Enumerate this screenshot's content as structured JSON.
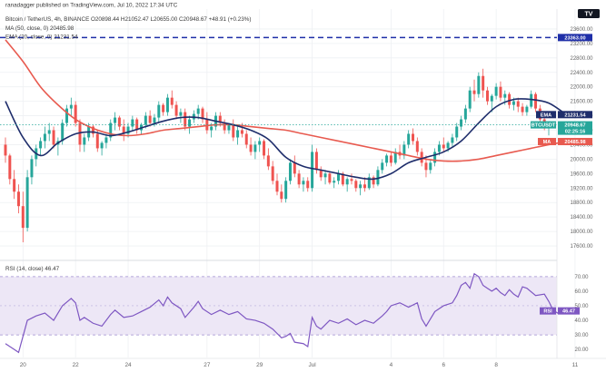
{
  "header": {
    "publisher": "ranadagger published on TradingView.com, Jul 10, 2022 17:34 UTC",
    "ohlc_line": "Bitcoin / TetherUS, 4h, BINANCE  O20898.44  H21052.47  L20655.00  C20948.67  +48.91 (+0.23%)",
    "ma_line": "MA (50, close, 0)  20485.98",
    "ema_line": "EMA (20, close, 0)  21231.54"
  },
  "rsi_header": "RSI (14, close)  46.47",
  "labels": {
    "ema_tag": "EMA",
    "ema_value": "21231.54",
    "price_tag": "BTCUSDT",
    "price_value": "20948.67",
    "countdown": "02:25:16",
    "ma_tag": "MA",
    "ma_value": "20485.98",
    "hline_value": "23363.00",
    "rsi_tag": "RSI",
    "rsi_value": "46.47"
  },
  "logo_text": "TV",
  "colors": {
    "up": "#26a69a",
    "down": "#ef5350",
    "ema": "#1e2d6b",
    "ma": "#e85a4f",
    "hline": "#1f2fa8",
    "rsi": "#7e57c2",
    "rsi_band": "#ede7f6",
    "price_tag": "#26a69a",
    "grid": "#eef0f3"
  },
  "chart_data": {
    "type": "candlestick",
    "symbol": "Bitcoin / TetherUS",
    "interval": "4h",
    "exchange": "BINANCE",
    "last": {
      "open": 20898.44,
      "high": 21052.47,
      "low": 20655.0,
      "close": 20948.67,
      "change": 48.91,
      "change_pct": 0.23
    },
    "ylim": [
      17300,
      24100
    ],
    "y_ticks": [
      23600,
      23200,
      22800,
      22400,
      22000,
      21600,
      21200,
      20800,
      20400,
      20000,
      19600,
      19200,
      18800,
      18400,
      18000,
      17600
    ],
    "x_ticks": [
      {
        "label": "20",
        "i": 4
      },
      {
        "label": "22",
        "i": 16
      },
      {
        "label": "24",
        "i": 28
      },
      {
        "label": "27",
        "i": 46
      },
      {
        "label": "29",
        "i": 58
      },
      {
        "label": "Jul",
        "i": 70
      },
      {
        "label": "4",
        "i": 88
      },
      {
        "label": "6",
        "i": 100
      },
      {
        "label": "8",
        "i": 112
      },
      {
        "label": "11",
        "i": 130
      }
    ],
    "horizontal_line": 23363,
    "candles": [
      [
        20400,
        20600,
        19900,
        20100
      ],
      [
        20100,
        20150,
        19300,
        19450
      ],
      [
        19450,
        19700,
        18900,
        19100
      ],
      [
        19100,
        19300,
        18500,
        18700
      ],
      [
        18700,
        19100,
        17700,
        18100
      ],
      [
        18100,
        19700,
        18000,
        19500
      ],
      [
        19500,
        20100,
        19300,
        20000
      ],
      [
        20000,
        20400,
        19800,
        20300
      ],
      [
        20300,
        20600,
        20100,
        20500
      ],
      [
        20500,
        20900,
        20300,
        20700
      ],
      [
        20700,
        21000,
        20500,
        20800
      ],
      [
        20800,
        20900,
        20300,
        20400
      ],
      [
        20400,
        20600,
        20100,
        20500
      ],
      [
        20500,
        21100,
        20400,
        21000
      ],
      [
        21000,
        21500,
        20900,
        21400
      ],
      [
        21400,
        21700,
        21200,
        21500
      ],
      [
        21500,
        21600,
        20900,
        21000
      ],
      [
        21000,
        21100,
        20200,
        20400
      ],
      [
        20400,
        20700,
        20200,
        20600
      ],
      [
        20600,
        21000,
        20500,
        20900
      ],
      [
        20900,
        20950,
        20600,
        20700
      ],
      [
        20700,
        20800,
        20200,
        20300
      ],
      [
        20300,
        20500,
        20100,
        20450
      ],
      [
        20450,
        20700,
        20300,
        20600
      ],
      [
        20600,
        21100,
        20500,
        21000
      ],
      [
        21000,
        21300,
        20800,
        21150
      ],
      [
        21150,
        21200,
        20800,
        20900
      ],
      [
        20900,
        21100,
        20500,
        20700
      ],
      [
        20700,
        21000,
        20600,
        20900
      ],
      [
        20900,
        21200,
        20800,
        21100
      ],
      [
        21100,
        21150,
        20700,
        20800
      ],
      [
        20800,
        21000,
        20700,
        20950
      ],
      [
        20950,
        21300,
        20850,
        21200
      ],
      [
        21200,
        21350,
        20900,
        21000
      ],
      [
        21000,
        21250,
        20900,
        21150
      ],
      [
        21150,
        21600,
        21000,
        21500
      ],
      [
        21500,
        21550,
        21200,
        21300
      ],
      [
        21300,
        21800,
        21200,
        21700
      ],
      [
        21700,
        21900,
        21400,
        21500
      ],
      [
        21500,
        21600,
        21100,
        21200
      ],
      [
        21200,
        21400,
        21000,
        21300
      ],
      [
        21300,
        21400,
        20800,
        20900
      ],
      [
        20900,
        21200,
        20700,
        21100
      ],
      [
        21100,
        21350,
        21000,
        21250
      ],
      [
        21250,
        21500,
        21100,
        21400
      ],
      [
        21400,
        21450,
        21000,
        21100
      ],
      [
        21100,
        21300,
        20700,
        20800
      ],
      [
        20800,
        21000,
        20600,
        20900
      ],
      [
        20900,
        21300,
        20800,
        21200
      ],
      [
        21200,
        21300,
        20900,
        21000
      ],
      [
        21000,
        21100,
        20700,
        20800
      ],
      [
        20800,
        21000,
        20700,
        20950
      ],
      [
        20950,
        21100,
        20500,
        20600
      ],
      [
        20600,
        20900,
        20400,
        20800
      ],
      [
        20800,
        21000,
        20600,
        20700
      ],
      [
        20700,
        20800,
        20300,
        20400
      ],
      [
        20400,
        20600,
        20100,
        20200
      ],
      [
        20200,
        20500,
        20000,
        20400
      ],
      [
        20400,
        20600,
        20200,
        20500
      ],
      [
        20500,
        20550,
        20000,
        20100
      ],
      [
        20100,
        20300,
        19700,
        19800
      ],
      [
        19800,
        19950,
        19300,
        19400
      ],
      [
        19400,
        19600,
        19000,
        19100
      ],
      [
        19100,
        19300,
        18800,
        18900
      ],
      [
        18900,
        19500,
        18800,
        19400
      ],
      [
        19400,
        20000,
        19300,
        19900
      ],
      [
        19900,
        20100,
        19500,
        19600
      ],
      [
        19600,
        19700,
        19200,
        19300
      ],
      [
        19300,
        19500,
        19100,
        19400
      ],
      [
        19400,
        19500,
        19100,
        19200
      ],
      [
        19200,
        20400,
        19100,
        20200
      ],
      [
        20200,
        20300,
        19600,
        19700
      ],
      [
        19700,
        19800,
        19400,
        19500
      ],
      [
        19500,
        19700,
        19300,
        19600
      ],
      [
        19600,
        19650,
        19300,
        19350
      ],
      [
        19350,
        19500,
        19200,
        19400
      ],
      [
        19400,
        19700,
        19300,
        19600
      ],
      [
        19600,
        19650,
        19250,
        19300
      ],
      [
        19300,
        19500,
        19100,
        19450
      ],
      [
        19450,
        19600,
        19300,
        19400
      ],
      [
        19400,
        19450,
        19100,
        19200
      ],
      [
        19200,
        19400,
        19000,
        19300
      ],
      [
        19300,
        19500,
        19100,
        19200
      ],
      [
        19200,
        19600,
        19150,
        19500
      ],
      [
        19500,
        19550,
        19200,
        19300
      ],
      [
        19300,
        19800,
        19250,
        19700
      ],
      [
        19700,
        20000,
        19600,
        19900
      ],
      [
        19900,
        20150,
        19800,
        20100
      ],
      [
        20100,
        20200,
        19800,
        19900
      ],
      [
        19900,
        20300,
        19850,
        20200
      ],
      [
        20200,
        20400,
        20000,
        20100
      ],
      [
        20100,
        20500,
        20000,
        20400
      ],
      [
        20400,
        20800,
        20300,
        20700
      ],
      [
        20700,
        20850,
        20400,
        20500
      ],
      [
        20500,
        20600,
        20100,
        20200
      ],
      [
        20200,
        20300,
        19800,
        19900
      ],
      [
        19900,
        20100,
        19500,
        19700
      ],
      [
        19700,
        20000,
        19600,
        19900
      ],
      [
        19900,
        20300,
        19800,
        20200
      ],
      [
        20200,
        20500,
        20100,
        20400
      ],
      [
        20400,
        20600,
        20200,
        20300
      ],
      [
        20300,
        20500,
        20200,
        20450
      ],
      [
        20450,
        20700,
        20350,
        20600
      ],
      [
        20600,
        21000,
        20500,
        20900
      ],
      [
        20900,
        21200,
        20800,
        21100
      ],
      [
        21100,
        21500,
        21000,
        21400
      ],
      [
        21400,
        22000,
        21300,
        21900
      ],
      [
        21900,
        22200,
        21600,
        21800
      ],
      [
        21800,
        22400,
        21700,
        22300
      ],
      [
        22300,
        22500,
        21700,
        21900
      ],
      [
        21900,
        22000,
        21500,
        21600
      ],
      [
        21600,
        21800,
        21300,
        21750
      ],
      [
        21750,
        22100,
        21650,
        22000
      ],
      [
        22000,
        22150,
        21600,
        21700
      ],
      [
        21700,
        21900,
        21500,
        21800
      ],
      [
        21800,
        21850,
        21400,
        21500
      ],
      [
        21500,
        21700,
        21350,
        21600
      ],
      [
        21600,
        21700,
        21300,
        21450
      ],
      [
        21450,
        21550,
        21200,
        21300
      ],
      [
        21300,
        21500,
        21200,
        21450
      ],
      [
        21450,
        21900,
        21400,
        21800
      ],
      [
        21800,
        21850,
        21300,
        21400
      ],
      [
        21400,
        21500,
        21000,
        21100
      ],
      [
        21100,
        21200,
        20800,
        20898.44
      ],
      [
        20898.44,
        21052.47,
        20655.0,
        20948.67
      ]
    ],
    "ema20": {
      "name": "EMA (20, close, 0)",
      "last": 21231.54,
      "points": [
        [
          0,
          21600
        ],
        [
          4,
          20600
        ],
        [
          8,
          20100
        ],
        [
          12,
          20450
        ],
        [
          16,
          20700
        ],
        [
          20,
          20750
        ],
        [
          24,
          20650
        ],
        [
          28,
          20750
        ],
        [
          32,
          20900
        ],
        [
          36,
          21050
        ],
        [
          40,
          21150
        ],
        [
          44,
          21150
        ],
        [
          48,
          21050
        ],
        [
          52,
          20950
        ],
        [
          56,
          20800
        ],
        [
          60,
          20550
        ],
        [
          64,
          20050
        ],
        [
          68,
          19800
        ],
        [
          72,
          19700
        ],
        [
          76,
          19600
        ],
        [
          80,
          19500
        ],
        [
          84,
          19450
        ],
        [
          88,
          19600
        ],
        [
          92,
          19900
        ],
        [
          96,
          20050
        ],
        [
          100,
          20200
        ],
        [
          104,
          20500
        ],
        [
          108,
          21000
        ],
        [
          112,
          21450
        ],
        [
          116,
          21650
        ],
        [
          120,
          21650
        ],
        [
          124,
          21550
        ],
        [
          128,
          21231.54
        ]
      ]
    },
    "ma50": {
      "name": "MA (50, close, 0)",
      "last": 20485.98,
      "points": [
        [
          0,
          23300
        ],
        [
          4,
          22700
        ],
        [
          8,
          22000
        ],
        [
          12,
          21500
        ],
        [
          16,
          21100
        ],
        [
          20,
          20850
        ],
        [
          24,
          20700
        ],
        [
          28,
          20650
        ],
        [
          32,
          20700
        ],
        [
          36,
          20800
        ],
        [
          40,
          20850
        ],
        [
          44,
          20900
        ],
        [
          48,
          20950
        ],
        [
          52,
          20950
        ],
        [
          56,
          20900
        ],
        [
          60,
          20850
        ],
        [
          64,
          20800
        ],
        [
          68,
          20700
        ],
        [
          72,
          20600
        ],
        [
          76,
          20500
        ],
        [
          80,
          20400
        ],
        [
          84,
          20300
        ],
        [
          88,
          20200
        ],
        [
          92,
          20100
        ],
        [
          96,
          20000
        ],
        [
          100,
          19950
        ],
        [
          104,
          19950
        ],
        [
          108,
          20000
        ],
        [
          112,
          20100
        ],
        [
          116,
          20200
        ],
        [
          120,
          20300
        ],
        [
          124,
          20400
        ],
        [
          128,
          20485.98
        ]
      ]
    },
    "rsi": {
      "name": "RSI (14, close)",
      "last": 46.47,
      "ylim": [
        17,
        78
      ],
      "y_ticks": [
        70,
        60,
        50,
        40,
        30,
        20
      ],
      "band": [
        30,
        70
      ],
      "points": [
        [
          0,
          24
        ],
        [
          2,
          20
        ],
        [
          3,
          18
        ],
        [
          5,
          40
        ],
        [
          7,
          43
        ],
        [
          9,
          45
        ],
        [
          11,
          40
        ],
        [
          13,
          50
        ],
        [
          15,
          55
        ],
        [
          16,
          52
        ],
        [
          17,
          40
        ],
        [
          18,
          42
        ],
        [
          20,
          38
        ],
        [
          22,
          36
        ],
        [
          24,
          44
        ],
        [
          25,
          47
        ],
        [
          27,
          42
        ],
        [
          29,
          43
        ],
        [
          31,
          46
        ],
        [
          33,
          49
        ],
        [
          35,
          54
        ],
        [
          36,
          50
        ],
        [
          37,
          56
        ],
        [
          38,
          52
        ],
        [
          40,
          48
        ],
        [
          41,
          42
        ],
        [
          43,
          49
        ],
        [
          44,
          53
        ],
        [
          45,
          48
        ],
        [
          47,
          44
        ],
        [
          49,
          47
        ],
        [
          51,
          44
        ],
        [
          53,
          46
        ],
        [
          55,
          41
        ],
        [
          57,
          40
        ],
        [
          59,
          38
        ],
        [
          61,
          34
        ],
        [
          62,
          31
        ],
        [
          63,
          28
        ],
        [
          64,
          29
        ],
        [
          65,
          31
        ],
        [
          66,
          25
        ],
        [
          68,
          24
        ],
        [
          69,
          22
        ],
        [
          70,
          42
        ],
        [
          71,
          36
        ],
        [
          72,
          34
        ],
        [
          74,
          40
        ],
        [
          76,
          38
        ],
        [
          78,
          41
        ],
        [
          80,
          37
        ],
        [
          82,
          40
        ],
        [
          84,
          38
        ],
        [
          86,
          43
        ],
        [
          87,
          46
        ],
        [
          88,
          50
        ],
        [
          90,
          52
        ],
        [
          92,
          49
        ],
        [
          94,
          52
        ],
        [
          95,
          41
        ],
        [
          96,
          36
        ],
        [
          98,
          46
        ],
        [
          100,
          50
        ],
        [
          102,
          52
        ],
        [
          103,
          57
        ],
        [
          104,
          64
        ],
        [
          105,
          66
        ],
        [
          106,
          62
        ],
        [
          107,
          72
        ],
        [
          108,
          70
        ],
        [
          109,
          64
        ],
        [
          110,
          62
        ],
        [
          111,
          60
        ],
        [
          112,
          62
        ],
        [
          113,
          59
        ],
        [
          114,
          57
        ],
        [
          115,
          61
        ],
        [
          116,
          58
        ],
        [
          117,
          56
        ],
        [
          118,
          63
        ],
        [
          119,
          62
        ],
        [
          121,
          57
        ],
        [
          123,
          58
        ],
        [
          124,
          53
        ],
        [
          125,
          47
        ],
        [
          126,
          45
        ],
        [
          127,
          46.47
        ]
      ]
    }
  }
}
